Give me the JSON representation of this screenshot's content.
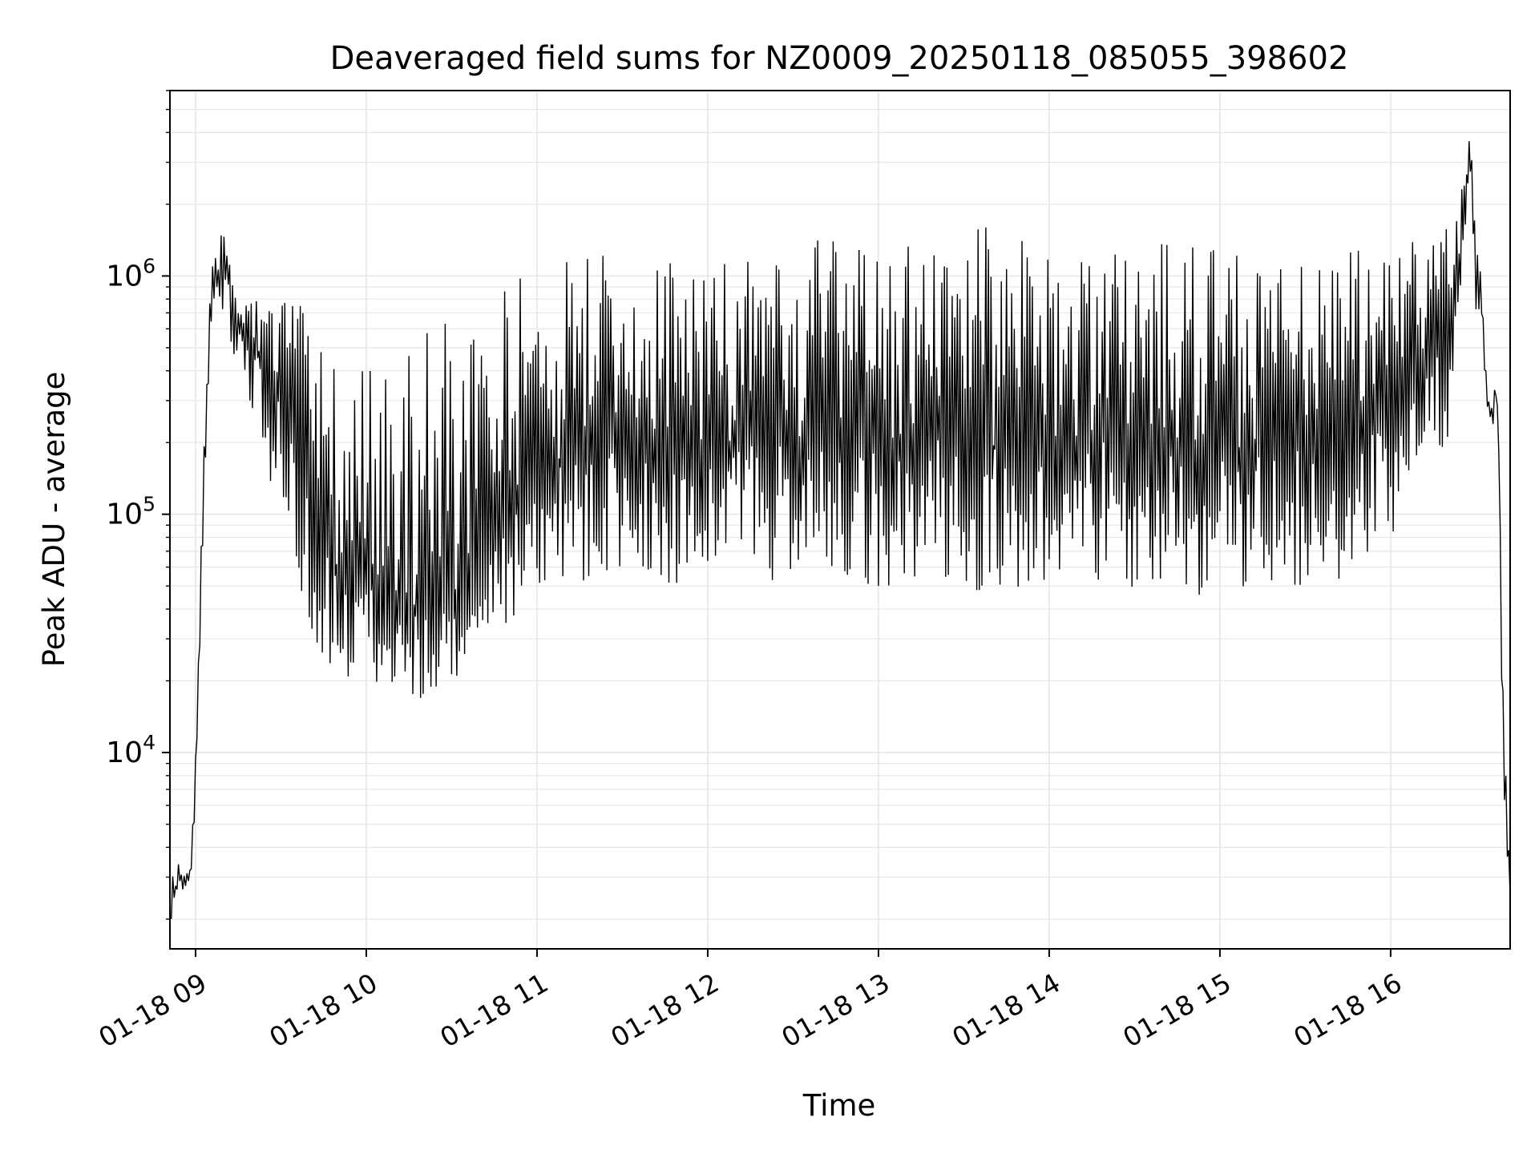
{
  "chart_data": {
    "type": "line",
    "title": "Deaveraged field sums for NZ0009_20250118_085055_398602",
    "xlabel": "Time",
    "ylabel": "Peak ADU - average",
    "x_scale": "time",
    "y_scale": "log",
    "xlim": [
      "2025-01-18 08:51",
      "2025-01-18 16:42"
    ],
    "ylim": [
      1500,
      6000000
    ],
    "grid": true,
    "line_color": "#000000",
    "grid_color": "#e6e6e6",
    "x_ticks": [
      {
        "value": "2025-01-18 09:00",
        "label": "01-18 09"
      },
      {
        "value": "2025-01-18 10:00",
        "label": "01-18 10"
      },
      {
        "value": "2025-01-18 11:00",
        "label": "01-18 11"
      },
      {
        "value": "2025-01-18 12:00",
        "label": "01-18 12"
      },
      {
        "value": "2025-01-18 13:00",
        "label": "01-18 13"
      },
      {
        "value": "2025-01-18 14:00",
        "label": "01-18 14"
      },
      {
        "value": "2025-01-18 15:00",
        "label": "01-18 15"
      },
      {
        "value": "2025-01-18 16:00",
        "label": "01-18 16"
      }
    ],
    "y_ticks": [
      {
        "value": 10000,
        "base": "10",
        "exp": "4"
      },
      {
        "value": 100000,
        "base": "10",
        "exp": "5"
      },
      {
        "value": 1000000,
        "base": "10",
        "exp": "6"
      }
    ],
    "series": [
      {
        "x": [
          "2025-01-18 08:51",
          "2025-01-18 08:52",
          "2025-01-18 08:53",
          "2025-01-18 08:54",
          "2025-01-18 08:55",
          "2025-01-18 08:56",
          "2025-01-18 08:57",
          "2025-01-18 08:58",
          "2025-01-18 08:59",
          "2025-01-18 09:00",
          "2025-01-18 09:01",
          "2025-01-18 09:02",
          "2025-01-18 09:03",
          "2025-01-18 09:04",
          "2025-01-18 09:05",
          "2025-01-18 09:06",
          "2025-01-18 09:07",
          "2025-01-18 09:08",
          "2025-01-18 09:10",
          "2025-01-18 09:12",
          "2025-01-18 09:14",
          "2025-01-18 09:16",
          "2025-01-18 09:20",
          "2025-01-18 09:25",
          "2025-01-18 09:30",
          "2025-01-18 09:35",
          "2025-01-18 09:40",
          "2025-01-18 09:45",
          "2025-01-18 09:50",
          "2025-01-18 09:55",
          "2025-01-18 10:00",
          "2025-01-18 10:10",
          "2025-01-18 10:20",
          "2025-01-18 10:30",
          "2025-01-18 10:40",
          "2025-01-18 10:50",
          "2025-01-18 11:00",
          "2025-01-18 11:15",
          "2025-01-18 11:30",
          "2025-01-18 11:45",
          "2025-01-18 12:00",
          "2025-01-18 12:20",
          "2025-01-18 12:40",
          "2025-01-18 13:00",
          "2025-01-18 13:20",
          "2025-01-18 13:40",
          "2025-01-18 14:00",
          "2025-01-18 14:20",
          "2025-01-18 14:40",
          "2025-01-18 15:00",
          "2025-01-18 15:20",
          "2025-01-18 15:40",
          "2025-01-18 16:00",
          "2025-01-18 16:10",
          "2025-01-18 16:20",
          "2025-01-18 16:25",
          "2025-01-18 16:28",
          "2025-01-18 16:30",
          "2025-01-18 16:32",
          "2025-01-18 16:34",
          "2025-01-18 16:36",
          "2025-01-18 16:37",
          "2025-01-18 16:38",
          "2025-01-18 16:39",
          "2025-01-18 16:40",
          "2025-01-18 16:41",
          "2025-01-18 16:42"
        ],
        "y": [
          2000,
          3000,
          2600,
          3200,
          2800,
          3000,
          2700,
          3100,
          4500,
          8000,
          20000,
          60000,
          150000,
          300000,
          600000,
          900000,
          1100000,
          1000000,
          1200000,
          900000,
          700000,
          600000,
          500000,
          400000,
          300000,
          200000,
          120000,
          80000,
          60000,
          55000,
          50000,
          45000,
          40000,
          45000,
          60000,
          90000,
          150000,
          180000,
          190000,
          200000,
          190000,
          200000,
          190000,
          200000,
          210000,
          190000,
          200000,
          210000,
          190000,
          180000,
          200000,
          220000,
          300000,
          400000,
          500000,
          1500000,
          3000000,
          900000,
          800000,
          300000,
          250000,
          350000,
          200000,
          30000,
          8000,
          4000,
          2500
        ],
        "min": [
          1800,
          2200,
          2300,
          2600,
          2400,
          2500,
          2400,
          2600,
          3000,
          6000,
          15000,
          40000,
          100000,
          250000,
          500000,
          700000,
          800000,
          700000,
          700000,
          500000,
          400000,
          300000,
          250000,
          150000,
          100000,
          50000,
          30000,
          25000,
          22000,
          20000,
          20000,
          15000,
          15000,
          18000,
          25000,
          35000,
          45000,
          50000,
          50000,
          50000,
          50000,
          50000,
          50000,
          50000,
          50000,
          45000,
          50000,
          50000,
          45000,
          45000,
          50000,
          50000,
          80000,
          150000,
          200000,
          1000000,
          2000000,
          700000,
          600000,
          250000,
          220000,
          300000,
          150000,
          20000,
          5000,
          3000,
          2200
        ],
        "max": [
          2200,
          3300,
          3000,
          3500,
          3200,
          4000,
          3200,
          3600,
          5000,
          10000,
          25000,
          80000,
          200000,
          400000,
          800000,
          1100000,
          1400000,
          1300000,
          1700000,
          1300000,
          1100000,
          900000,
          900000,
          800000,
          800000,
          1000000,
          600000,
          500000,
          400000,
          400000,
          500000,
          400000,
          600000,
          700000,
          800000,
          900000,
          1200000,
          1500000,
          1500000,
          1200000,
          1200000,
          1200000,
          1500000,
          1300000,
          1400000,
          1800000,
          1400000,
          1300000,
          1400000,
          1300000,
          1300000,
          1200000,
          1500000,
          1500000,
          1800000,
          2500000,
          4000000,
          1500000,
          1000000,
          350000,
          300000,
          400000,
          300000,
          50000,
          14000,
          7000,
          3000
        ]
      }
    ]
  }
}
